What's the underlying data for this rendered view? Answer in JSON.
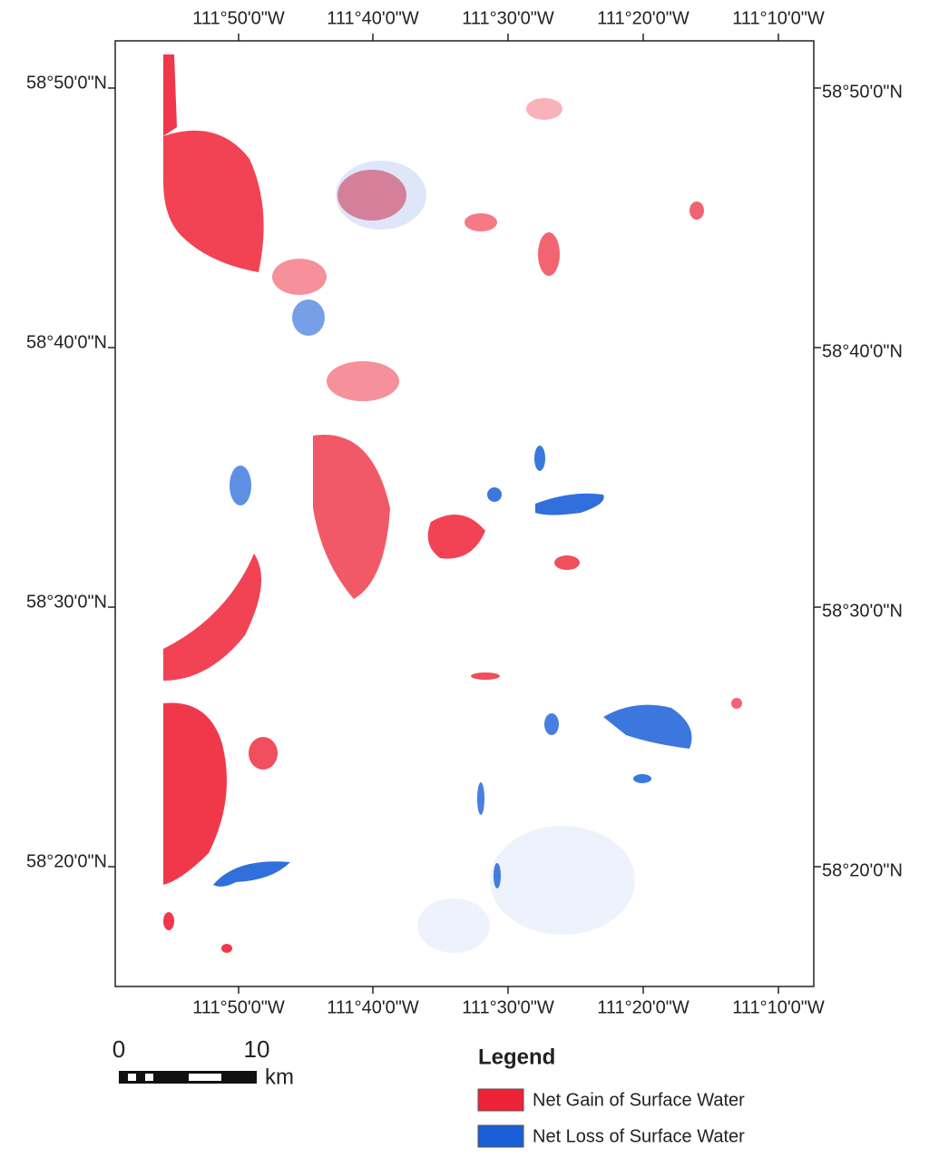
{
  "map": {
    "x_labels": [
      "111°50'0\"W",
      "111°40'0\"W",
      "111°30'0\"W",
      "111°20'0\"W",
      "111°10'0\"W"
    ],
    "y_labels": [
      "58°50'0\"N",
      "58°40'0\"N",
      "58°30'0\"N",
      "58°20'0\"N"
    ],
    "scale_bar": {
      "labels": [
        "0",
        "10"
      ],
      "unit": "km"
    },
    "legend": {
      "title": "Legend",
      "items": [
        {
          "label": "Net Gain of Surface Water",
          "color": "#ee2236"
        },
        {
          "label": "Net Loss of Surface Water",
          "color": "#1a5fd8"
        }
      ]
    }
  }
}
